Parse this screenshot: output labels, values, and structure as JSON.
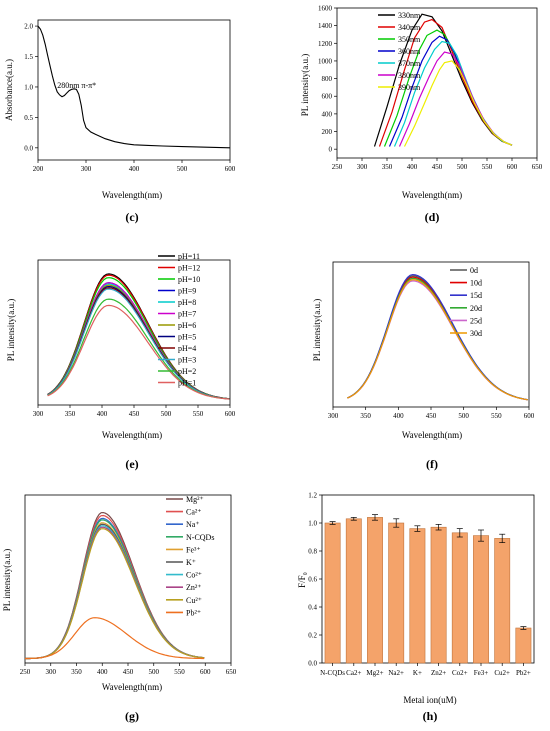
{
  "chart_data": [
    {
      "id": "c",
      "panel_label": "(c)",
      "type": "line",
      "xlabel": "Wavelength(nm)",
      "ylabel": "Absorbance(a.u.)",
      "xlim": [
        200,
        600
      ],
      "ylim": [
        -0.2,
        2.1
      ],
      "xticks": [
        200,
        300,
        400,
        500,
        600
      ],
      "yticks": [
        0.0,
        0.5,
        1.0,
        1.5,
        2.0
      ],
      "ytick_labels": [
        "0.0",
        "0.5",
        "1.0",
        "1.5",
        "2.0"
      ],
      "annotation": {
        "text": "280nm π-π*",
        "x": 240,
        "y": 0.98
      },
      "series": [
        {
          "x": [
            200,
            205,
            210,
            215,
            220,
            225,
            230,
            235,
            240,
            245,
            250,
            255,
            260,
            265,
            270,
            275,
            280,
            285,
            290,
            295,
            300,
            310,
            320,
            340,
            360,
            380,
            400,
            430,
            460,
            500,
            550,
            600
          ],
          "y": [
            2.0,
            1.95,
            1.85,
            1.7,
            1.52,
            1.35,
            1.18,
            1.03,
            0.92,
            0.87,
            0.84,
            0.86,
            0.9,
            0.94,
            0.96,
            0.97,
            0.96,
            0.88,
            0.7,
            0.45,
            0.33,
            0.26,
            0.22,
            0.15,
            0.1,
            0.07,
            0.05,
            0.04,
            0.03,
            0.02,
            0.01,
            0.0
          ],
          "color": "#000000"
        }
      ]
    },
    {
      "id": "d",
      "panel_label": "(d)",
      "type": "line",
      "xlabel": "Wavelength(nm)",
      "ylabel": "PL intensity(a.u.)",
      "xlim": [
        250,
        650
      ],
      "ylim": [
        -100,
        1600
      ],
      "xticks": [
        250,
        300,
        350,
        400,
        450,
        500,
        550,
        600,
        650
      ],
      "yticks": [
        0,
        200,
        400,
        600,
        800,
        1000,
        1200,
        1400,
        1600
      ],
      "legend_position": "top-right",
      "series": [
        {
          "name": "330nm",
          "color": "#000000",
          "x": [
            325,
            350,
            375,
            400,
            420,
            440,
            460,
            480,
            500,
            520,
            540,
            560,
            580,
            600
          ],
          "y": [
            30,
            480,
            960,
            1350,
            1530,
            1500,
            1340,
            1060,
            780,
            530,
            330,
            180,
            90,
            45
          ]
        },
        {
          "name": "340nm",
          "color": "#e00000",
          "x": [
            335,
            360,
            385,
            405,
            425,
            440,
            460,
            480,
            500,
            520,
            540,
            560,
            580,
            600
          ],
          "y": [
            30,
            420,
            900,
            1260,
            1440,
            1470,
            1380,
            1110,
            820,
            550,
            340,
            185,
            90,
            45
          ]
        },
        {
          "name": "350nm",
          "color": "#00cc00",
          "x": [
            345,
            370,
            395,
            415,
            430,
            450,
            465,
            480,
            500,
            520,
            540,
            560,
            580,
            600
          ],
          "y": [
            30,
            380,
            820,
            1130,
            1290,
            1350,
            1300,
            1150,
            860,
            580,
            350,
            190,
            92,
            45
          ]
        },
        {
          "name": "360nm",
          "color": "#0000cc",
          "x": [
            355,
            380,
            400,
            420,
            440,
            455,
            470,
            485,
            500,
            520,
            540,
            560,
            580,
            600
          ],
          "y": [
            30,
            360,
            700,
            1000,
            1210,
            1280,
            1240,
            1090,
            880,
            600,
            360,
            195,
            95,
            45
          ]
        },
        {
          "name": "370nm",
          "color": "#00cccc",
          "x": [
            365,
            385,
            405,
            425,
            445,
            460,
            475,
            490,
            505,
            520,
            540,
            560,
            580,
            600
          ],
          "y": [
            30,
            300,
            640,
            920,
            1130,
            1220,
            1200,
            1060,
            830,
            610,
            370,
            200,
            95,
            45
          ]
        },
        {
          "name": "380nm",
          "color": "#cc00cc",
          "x": [
            375,
            395,
            415,
            435,
            450,
            465,
            480,
            495,
            510,
            525,
            545,
            565,
            585,
            600
          ],
          "y": [
            30,
            290,
            580,
            830,
            1000,
            1100,
            1080,
            950,
            740,
            540,
            320,
            170,
            80,
            45
          ]
        },
        {
          "name": "390nm",
          "color": "#eeee00",
          "x": [
            385,
            405,
            425,
            440,
            455,
            465,
            480,
            495,
            510,
            525,
            545,
            565,
            585,
            600
          ],
          "y": [
            30,
            260,
            520,
            720,
            900,
            980,
            1000,
            900,
            720,
            520,
            310,
            165,
            80,
            45
          ]
        }
      ]
    },
    {
      "id": "e",
      "panel_label": "(e)",
      "type": "line",
      "xlabel": "Wavelength(nm)",
      "ylabel": "PL intensity(a.u.)",
      "xlim": [
        300,
        600
      ],
      "ylim": [
        0,
        1.15
      ],
      "xticks": [
        300,
        350,
        400,
        450,
        500,
        550,
        600
      ],
      "legend_position": "top-right",
      "series": [
        {
          "name": "pH=11",
          "color": "#000000",
          "peak": 1.0
        },
        {
          "name": "pH=12",
          "color": "#e00000",
          "peak": 0.99
        },
        {
          "name": "pH=10",
          "color": "#00cc00",
          "peak": 0.97
        },
        {
          "name": "pH=9",
          "color": "#0000cc",
          "peak": 0.93
        },
        {
          "name": "pH=8",
          "color": "#00cccc",
          "peak": 0.92
        },
        {
          "name": "pH=7",
          "color": "#cc00cc",
          "peak": 0.93
        },
        {
          "name": "pH=6",
          "color": "#999900",
          "peak": 0.91
        },
        {
          "name": "pH=5",
          "color": "#000080",
          "peak": 0.9
        },
        {
          "name": "pH=4",
          "color": "#800000",
          "peak": 0.89
        },
        {
          "name": "pH=3",
          "color": "#33aacc",
          "peak": 0.88
        },
        {
          "name": "pH=2",
          "color": "#33bb33",
          "peak": 0.8
        },
        {
          "name": "pH=1",
          "color": "#e06060",
          "peak": 0.75
        }
      ]
    },
    {
      "id": "f",
      "panel_label": "(f)",
      "type": "line",
      "xlabel": "Wavelength(nm)",
      "ylabel": "PL intensity(a.u.)",
      "xlim": [
        300,
        600
      ],
      "ylim": [
        0,
        1.15
      ],
      "xticks": [
        300,
        350,
        400,
        450,
        500,
        550,
        600
      ],
      "legend_position": "top-right",
      "series": [
        {
          "name": "0d",
          "color": "#555555",
          "peak": 1.0
        },
        {
          "name": "10d",
          "color": "#e00000",
          "peak": 0.99
        },
        {
          "name": "15d",
          "color": "#3333cc",
          "peak": 1.01
        },
        {
          "name": "20d",
          "color": "#33aa33",
          "peak": 0.98
        },
        {
          "name": "25d",
          "color": "#cc66cc",
          "peak": 0.96
        },
        {
          "name": "30d",
          "color": "#ee9900",
          "peak": 0.97
        }
      ]
    },
    {
      "id": "g",
      "panel_label": "(g)",
      "type": "line",
      "xlabel": "Wavelength(nm)",
      "ylabel": "PL intensity(a.u.)",
      "xlim": [
        250,
        650
      ],
      "ylim": [
        0,
        1.15
      ],
      "xticks": [
        250,
        300,
        350,
        400,
        450,
        500,
        550,
        600,
        650
      ],
      "legend_position": "top-right",
      "series": [
        {
          "name": "Mg²⁺",
          "color": "#7a4a4a",
          "peak": 1.0
        },
        {
          "name": "Ca²⁺",
          "color": "#e05050",
          "peak": 0.98
        },
        {
          "name": "Na⁺",
          "color": "#3366cc",
          "peak": 0.96
        },
        {
          "name": "N-CQDs",
          "color": "#33aa66",
          "peak": 0.95
        },
        {
          "name": "Fe³⁺",
          "color": "#e0a030",
          "peak": 0.93
        },
        {
          "name": "K⁺",
          "color": "#555555",
          "peak": 0.92
        },
        {
          "name": "Co²⁺",
          "color": "#33bbcc",
          "peak": 0.91
        },
        {
          "name": "Zn²⁺",
          "color": "#aa4488",
          "peak": 0.9
        },
        {
          "name": "Cu²⁺",
          "color": "#b8a020",
          "peak": 0.89
        },
        {
          "name": "Pb²⁺",
          "color": "#ee7020",
          "peak": 0.28
        }
      ]
    },
    {
      "id": "h",
      "panel_label": "(h)",
      "type": "bar",
      "xlabel": "Metal ion(uM)",
      "ylabel": "F/F₀",
      "ylim": [
        0,
        1.2
      ],
      "yticks": [
        0.0,
        0.2,
        0.4,
        0.6,
        0.8,
        1.0,
        1.2
      ],
      "ytick_labels": [
        "0.0",
        "0.2",
        "0.4",
        "0.6",
        "0.8",
        "1.0",
        "1.2"
      ],
      "categories": [
        "N-CQDs",
        "Ca2+",
        "Mg2+",
        "Na2+",
        "K+",
        "Zn2+",
        "Co2+",
        "Fe3+",
        "Cu2+",
        "Pb2+"
      ],
      "values": [
        1.0,
        1.03,
        1.04,
        1.0,
        0.96,
        0.97,
        0.93,
        0.91,
        0.89,
        0.25
      ],
      "errors": [
        0.01,
        0.01,
        0.02,
        0.03,
        0.02,
        0.02,
        0.03,
        0.04,
        0.03,
        0.01
      ],
      "color": "#f4a36a"
    }
  ]
}
